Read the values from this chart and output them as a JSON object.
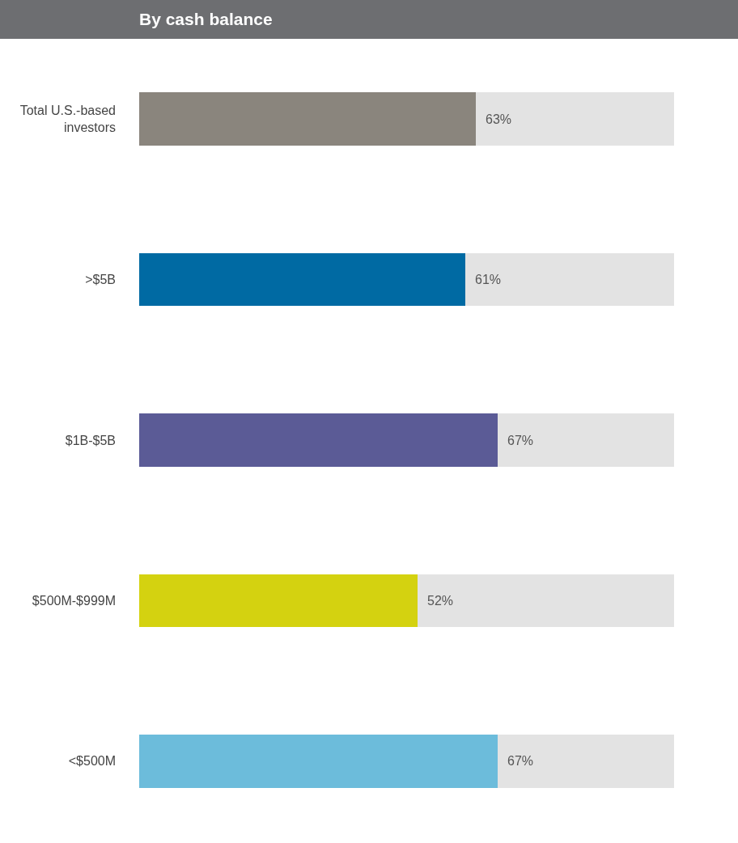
{
  "chart_data": {
    "type": "bar",
    "orientation": "horizontal",
    "stacked": true,
    "title": "By cash balance",
    "categories": [
      "Total U.S.-based investors",
      ">$5B",
      "$1B-$5B",
      "$500M-$999M",
      "<$500M"
    ],
    "series": [
      {
        "colors": [
          "#8a857d",
          "#006aa3",
          "#5b5b96",
          "#d4d210",
          "#6cbcdb"
        ],
        "values": [
          63,
          61,
          67,
          52,
          67
        ],
        "value_labels": [
          "63%",
          "61%",
          "67%",
          "52%",
          "67%"
        ]
      },
      {
        "color": "#e3e3e3",
        "values": [
          37,
          39,
          33,
          48,
          33
        ]
      }
    ],
    "xlim": [
      0,
      100
    ],
    "tick_labels": "y"
  }
}
